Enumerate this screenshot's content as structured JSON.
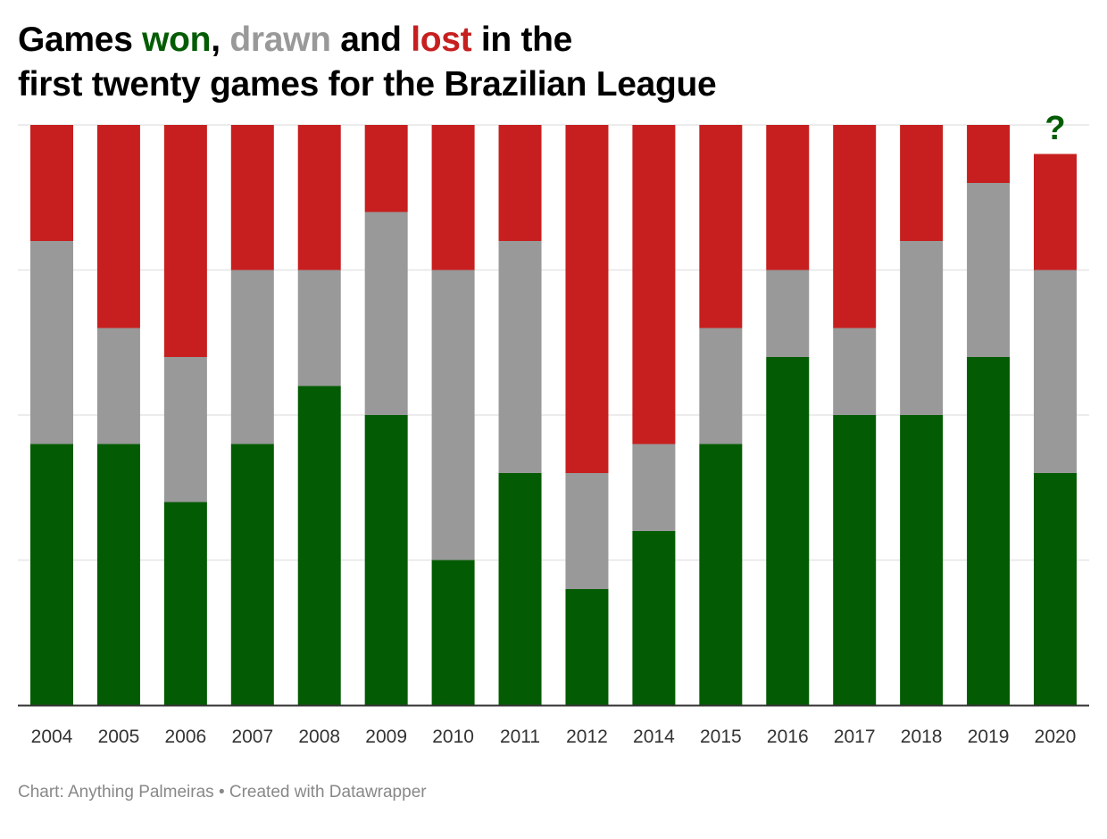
{
  "title": {
    "line1_prefix": "Games ",
    "won_word": "won",
    "comma": ",",
    "drawn_word": "drawn",
    "and_word": " and ",
    "lost_word": "lost",
    "line1_suffix": " in the",
    "line2": "first twenty games for the Brazilian League"
  },
  "colors": {
    "won": "#035c03",
    "drawn": "#999999",
    "lost": "#c71f1f",
    "grid": "#e6e6e6",
    "axis": "#333333"
  },
  "chart_data": {
    "type": "bar",
    "stacked": true,
    "orientation": "vertical",
    "title": "Games won, drawn and lost in the first twenty games for the Brazilian League",
    "xlabel": "",
    "ylabel": "",
    "ylim": [
      0,
      20
    ],
    "yticks": [
      0,
      5,
      10,
      15,
      20
    ],
    "grid": true,
    "categories": [
      "2004",
      "2005",
      "2006",
      "2007",
      "2008",
      "2009",
      "2010",
      "2011",
      "2012",
      "2014",
      "2015",
      "2016",
      "2017",
      "2018",
      "2019",
      "2020"
    ],
    "series": [
      {
        "name": "won",
        "color": "#035c03",
        "values": [
          9,
          9,
          7,
          9,
          11,
          10,
          5,
          8,
          4,
          6,
          9,
          12,
          10,
          10,
          12,
          8
        ]
      },
      {
        "name": "drawn",
        "color": "#999999",
        "values": [
          7,
          4,
          5,
          6,
          4,
          7,
          10,
          8,
          4,
          3,
          4,
          3,
          3,
          6,
          6,
          7
        ]
      },
      {
        "name": "lost",
        "color": "#c71f1f",
        "values": [
          4,
          7,
          8,
          5,
          5,
          3,
          5,
          4,
          12,
          11,
          7,
          5,
          7,
          4,
          2,
          4
        ]
      }
    ],
    "annotations": [
      {
        "category": "2020",
        "text": "?",
        "color": "#035c03"
      }
    ]
  },
  "footer": {
    "text": "Chart: Anything Palmeiras • Created with Datawrapper"
  }
}
